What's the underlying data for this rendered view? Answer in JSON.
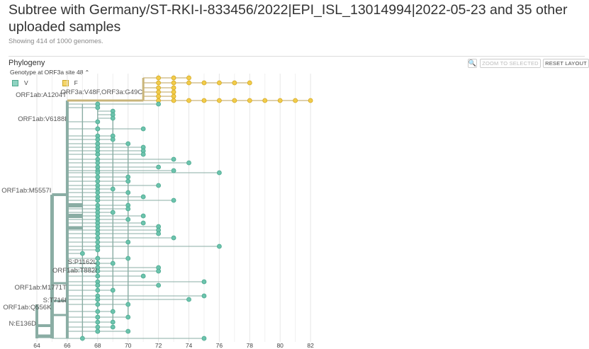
{
  "header": {
    "title": "Subtree with Germany/ST-RKI-I-833456/2022|EPI_ISL_13014994|2022-05-23 and 35 other uploaded samples",
    "subtitle": "Showing 414 of 1000 genomes."
  },
  "panel": {
    "title": "Phylogeny",
    "color_by_label": "Genotype at ORF3a site 48",
    "buttons": {
      "zoom_selected": "ZOOM TO SELECTED",
      "reset_layout": "RESET LAYOUT"
    }
  },
  "legend": [
    {
      "label": "V",
      "color": "#6cc3ad"
    },
    {
      "label": "F",
      "color": "#f2cc4a"
    }
  ],
  "colors": {
    "V": "#6cc3ad",
    "F": "#f2cc4a",
    "branch_V": "#8aada4",
    "branch_F": "#c9b57a",
    "grid": "#e6e6e6"
  },
  "x_axis": {
    "ticks": [
      "64",
      "66",
      "68",
      "70",
      "72",
      "74",
      "76",
      "78",
      "80",
      "82"
    ]
  },
  "branch_labels": {
    "a": "ORF3a:V48F,ORF3a:G49C",
    "b": "ORF1ab:A1204T",
    "c": "ORF1ab:V6188I",
    "d": "ORF1ab:M5557I",
    "e": "S:P1162L",
    "f": "ORF1ab:T882I",
    "g": "ORF1ab:M1771T",
    "h": "S:T716I",
    "i": "ORF1ab:Q556K",
    "j": "N:E136D"
  }
}
